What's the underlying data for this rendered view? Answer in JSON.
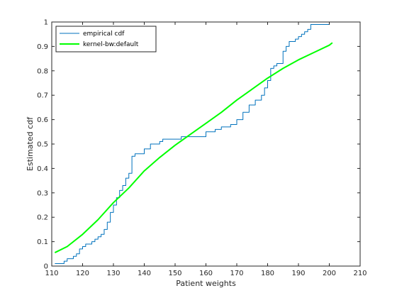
{
  "chart_data": {
    "type": "line",
    "xlabel": "Patient weights",
    "ylabel": "Estimated cdf",
    "xlim": [
      110,
      210
    ],
    "ylim": [
      0,
      1
    ],
    "xticks": [
      110,
      120,
      130,
      140,
      150,
      160,
      170,
      180,
      190,
      200,
      210
    ],
    "yticks": [
      0,
      0.1,
      0.2,
      0.3,
      0.4,
      0.5,
      0.6,
      0.7,
      0.8,
      0.9,
      1
    ],
    "grid": false,
    "legend_position": "top-left",
    "series": [
      {
        "name": "empirical cdf",
        "style": "stairs",
        "color": "#0072BD",
        "x": [
          111,
          113,
          114,
          115,
          117,
          118,
          119,
          120,
          121,
          123,
          124,
          125,
          126,
          127,
          128,
          129,
          130,
          131,
          132,
          133,
          134,
          135,
          136,
          137,
          140,
          142,
          145,
          146,
          152,
          160,
          163,
          165,
          168,
          170,
          172,
          174,
          176,
          178,
          179,
          180,
          181,
          182,
          183,
          185,
          186,
          187,
          189,
          190,
          191,
          192,
          193,
          194,
          195,
          200,
          201
        ],
        "y": [
          0.01,
          0.01,
          0.02,
          0.03,
          0.04,
          0.05,
          0.07,
          0.08,
          0.09,
          0.1,
          0.11,
          0.12,
          0.13,
          0.15,
          0.18,
          0.22,
          0.25,
          0.28,
          0.31,
          0.33,
          0.36,
          0.38,
          0.45,
          0.46,
          0.48,
          0.5,
          0.51,
          0.52,
          0.53,
          0.55,
          0.56,
          0.57,
          0.58,
          0.6,
          0.63,
          0.66,
          0.68,
          0.7,
          0.73,
          0.76,
          0.81,
          0.82,
          0.83,
          0.88,
          0.9,
          0.92,
          0.93,
          0.94,
          0.95,
          0.96,
          0.97,
          0.99,
          0.99,
          1.0,
          1.0
        ]
      },
      {
        "name": "kernel-bw:default",
        "style": "line",
        "color": "#00FF00",
        "x": [
          111,
          115,
          120,
          125,
          130,
          135,
          140,
          145,
          150,
          155,
          160,
          165,
          170,
          175,
          180,
          185,
          190,
          195,
          200,
          201
        ],
        "y": [
          0.055,
          0.08,
          0.13,
          0.19,
          0.26,
          0.32,
          0.39,
          0.445,
          0.495,
          0.54,
          0.585,
          0.63,
          0.68,
          0.725,
          0.77,
          0.81,
          0.845,
          0.875,
          0.905,
          0.915
        ]
      }
    ]
  }
}
